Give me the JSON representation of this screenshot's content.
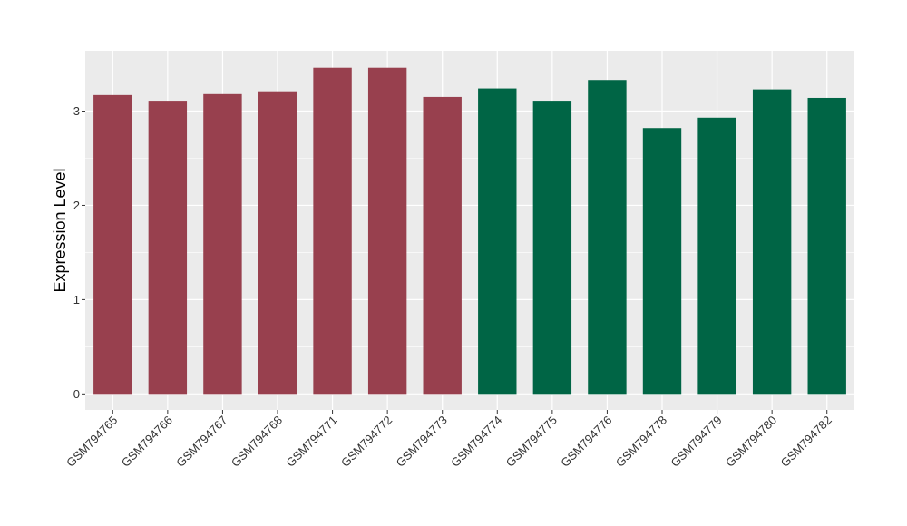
{
  "chart_data": {
    "type": "bar",
    "title": "",
    "xlabel": "",
    "ylabel": "Expression Level",
    "categories": [
      "GSM794765",
      "GSM794766",
      "GSM794767",
      "GSM794768",
      "GSM794771",
      "GSM794772",
      "GSM794773",
      "GSM794774",
      "GSM794775",
      "GSM794776",
      "GSM794778",
      "GSM794779",
      "GSM794780",
      "GSM794782"
    ],
    "values": [
      3.17,
      3.11,
      3.18,
      3.21,
      3.46,
      3.46,
      3.15,
      3.24,
      3.11,
      3.33,
      2.82,
      2.93,
      3.23,
      3.14
    ],
    "groups": [
      0,
      0,
      0,
      0,
      0,
      0,
      0,
      1,
      1,
      1,
      1,
      1,
      1,
      1
    ],
    "group_colors": [
      "#98404e",
      "#006545"
    ],
    "ylim": [
      -0.17,
      3.64
    ],
    "yticks": [
      0,
      1,
      2,
      3
    ],
    "grid": true,
    "legend": "none",
    "panel_background": "#ebebeb",
    "gridline_color": "#ffffff"
  }
}
